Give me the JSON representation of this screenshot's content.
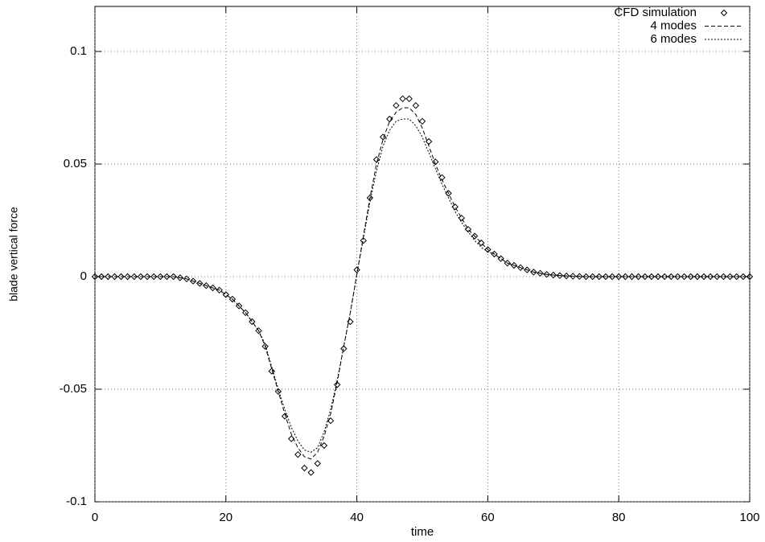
{
  "chart_data": {
    "type": "line",
    "xlabel": "time",
    "ylabel": "blade vertical force",
    "x": [
      0,
      1,
      2,
      3,
      4,
      5,
      6,
      7,
      8,
      9,
      10,
      11,
      12,
      13,
      14,
      15,
      16,
      17,
      18,
      19,
      20,
      21,
      22,
      23,
      24,
      25,
      26,
      27,
      28,
      29,
      30,
      31,
      32,
      33,
      34,
      35,
      36,
      37,
      38,
      39,
      40,
      41,
      42,
      43,
      44,
      45,
      46,
      47,
      48,
      49,
      50,
      51,
      52,
      53,
      54,
      55,
      56,
      57,
      58,
      59,
      60,
      61,
      62,
      63,
      64,
      65,
      66,
      67,
      68,
      69,
      70,
      71,
      72,
      73,
      74,
      75,
      76,
      77,
      78,
      79,
      80,
      81,
      82,
      83,
      84,
      85,
      86,
      87,
      88,
      89,
      90,
      91,
      92,
      93,
      94,
      95,
      96,
      97,
      98,
      99,
      100
    ],
    "series": [
      {
        "name": "CFD simulation",
        "color": "#000000",
        "marker": "diamond",
        "values": [
          0,
          0,
          0,
          0,
          0,
          0,
          0,
          0,
          0,
          0,
          0,
          0,
          0,
          -0.0005,
          -0.001,
          -0.002,
          -0.003,
          -0.004,
          -0.005,
          -0.006,
          -0.008,
          -0.01,
          -0.013,
          -0.016,
          -0.02,
          -0.024,
          -0.031,
          -0.042,
          -0.051,
          -0.062,
          -0.072,
          -0.079,
          -0.085,
          -0.087,
          -0.083,
          -0.075,
          -0.064,
          -0.048,
          -0.032,
          -0.02,
          0.003,
          0.016,
          0.035,
          0.052,
          0.062,
          0.07,
          0.076,
          0.079,
          0.079,
          0.076,
          0.069,
          0.06,
          0.051,
          0.044,
          0.037,
          0.031,
          0.026,
          0.021,
          0.018,
          0.015,
          0.012,
          0.01,
          0.008,
          0.006,
          0.005,
          0.004,
          0.003,
          0.002,
          0.0015,
          0.001,
          0.0007,
          0.0005,
          0.0003,
          0.0002,
          0.0001,
          0,
          0,
          0,
          0,
          0,
          0,
          0,
          0,
          0,
          0,
          0,
          0,
          0,
          0,
          0,
          0,
          0,
          0,
          0,
          0,
          0,
          0,
          0,
          0,
          0,
          0
        ]
      },
      {
        "name": "4 modes",
        "color": "#000000",
        "dash": "5,3",
        "values": [
          0,
          0,
          0,
          0,
          0,
          0,
          0,
          0,
          0,
          0,
          0,
          0,
          0,
          -0.0005,
          -0.001,
          -0.002,
          -0.003,
          -0.004,
          -0.005,
          -0.006,
          -0.008,
          -0.01,
          -0.013,
          -0.016,
          -0.02,
          -0.024,
          -0.031,
          -0.041,
          -0.051,
          -0.061,
          -0.07,
          -0.076,
          -0.08,
          -0.081,
          -0.078,
          -0.071,
          -0.061,
          -0.047,
          -0.031,
          -0.016,
          0.001,
          0.018,
          0.035,
          0.05,
          0.061,
          0.069,
          0.073,
          0.075,
          0.075,
          0.072,
          0.066,
          0.058,
          0.05,
          0.043,
          0.037,
          0.031,
          0.026,
          0.021,
          0.018,
          0.015,
          0.012,
          0.01,
          0.008,
          0.006,
          0.005,
          0.004,
          0.003,
          0.002,
          0.0015,
          0.001,
          0.0007,
          0.0005,
          0.0003,
          0.0002,
          0.0001,
          0,
          0,
          0,
          0,
          0,
          0,
          0,
          0,
          0,
          0,
          0,
          0,
          0,
          0,
          0,
          0,
          0,
          0,
          0,
          0,
          0,
          0,
          0,
          0,
          0,
          0
        ]
      },
      {
        "name": "6 modes",
        "color": "#000000",
        "dash": "2,2",
        "values": [
          0,
          0,
          0,
          0,
          0,
          0,
          0,
          0,
          0,
          0,
          0,
          0,
          0,
          -0.0005,
          -0.001,
          -0.002,
          -0.003,
          -0.004,
          -0.005,
          -0.006,
          -0.008,
          -0.01,
          -0.013,
          -0.016,
          -0.02,
          -0.024,
          -0.03,
          -0.04,
          -0.05,
          -0.059,
          -0.067,
          -0.073,
          -0.077,
          -0.078,
          -0.076,
          -0.069,
          -0.059,
          -0.046,
          -0.031,
          -0.016,
          0.001,
          0.017,
          0.033,
          0.047,
          0.058,
          0.065,
          0.069,
          0.07,
          0.07,
          0.067,
          0.062,
          0.055,
          0.048,
          0.041,
          0.035,
          0.029,
          0.024,
          0.02,
          0.016,
          0.013,
          0.011,
          0.01,
          0.008,
          0.006,
          0.005,
          0.004,
          0.003,
          0.002,
          0.0015,
          0.001,
          0.0007,
          0.0005,
          0.0003,
          0.0002,
          0.0001,
          0,
          0,
          0,
          0,
          0,
          0,
          0,
          0,
          0,
          0,
          0,
          0,
          0,
          0,
          0,
          0,
          0,
          0,
          0,
          0,
          0,
          0,
          0,
          0,
          0,
          0
        ]
      }
    ],
    "xlim": [
      0,
      100
    ],
    "xticks": [
      0,
      20,
      40,
      60,
      80,
      100
    ],
    "ylim": [
      -0.1,
      0.12
    ],
    "yticks": [
      -0.1,
      -0.05,
      0,
      0.05,
      0.1
    ],
    "grid": true,
    "legend": "top-right"
  }
}
